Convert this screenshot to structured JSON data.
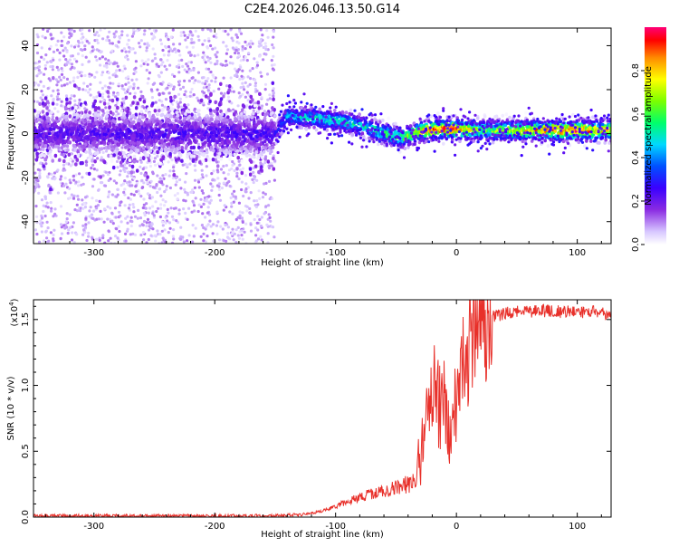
{
  "figure": {
    "title": "C2E4.2026.046.13.50.G14"
  },
  "chart_data": [
    {
      "type": "heatmap",
      "title": "C2E4.2026.046.13.50.G14",
      "xlabel": "Height of straight line (km)",
      "ylabel": "Frequency (Hz)",
      "xlim": [
        -350,
        128
      ],
      "ylim": [
        -50,
        48
      ],
      "xticks": [
        -300,
        -200,
        -100,
        0,
        100
      ],
      "yticks": [
        -40,
        -20,
        0,
        20,
        40
      ],
      "colorbar": {
        "label": "Normalized spectral amplitude",
        "range": [
          0,
          1
        ],
        "ticks": [
          0.0,
          0.2,
          0.4,
          0.6,
          0.8
        ]
      },
      "ridge": {
        "description_points_x": [
          -350,
          -150,
          -140,
          -120,
          -100,
          -80,
          -60,
          -45,
          -30,
          -15,
          0,
          20,
          60,
          100,
          128
        ],
        "frequency_hz": [
          0,
          0,
          8,
          7,
          6,
          4,
          0,
          -2,
          1,
          2,
          2,
          1.5,
          1.5,
          1.5,
          1.5
        ],
        "amplitude": [
          0.22,
          0.25,
          0.45,
          0.5,
          0.5,
          0.5,
          0.55,
          0.6,
          0.75,
          0.9,
          0.9,
          0.6,
          0.8,
          0.9,
          0.75
        ]
      }
    },
    {
      "type": "line",
      "xlabel": "Height of straight line (km)",
      "ylabel": "SNR (10 * v/v)",
      "yscale_label": "(x10",
      "yscale_exponent": "4",
      "xlim": [
        -350,
        128
      ],
      "ylim": [
        0,
        1.65
      ],
      "xticks": [
        -300,
        -200,
        -100,
        0,
        100
      ],
      "yticks": [
        "0.0",
        "0.5",
        "1.0",
        "1.5"
      ],
      "series": [
        {
          "name": "SNR",
          "color": "#e8302a",
          "x": [
            -350,
            -300,
            -250,
            -200,
            -150,
            -125,
            -110,
            -100,
            -90,
            -80,
            -70,
            -60,
            -50,
            -40,
            -35,
            -30,
            -25,
            -20,
            -15,
            -10,
            -5,
            0,
            5,
            10,
            15,
            20,
            25,
            30,
            40,
            50,
            60,
            70,
            80,
            90,
            100,
            110,
            120,
            128
          ],
          "y": [
            0.01,
            0.01,
            0.01,
            0.01,
            0.01,
            0.02,
            0.05,
            0.08,
            0.12,
            0.15,
            0.18,
            0.2,
            0.22,
            0.25,
            0.28,
            0.5,
            0.9,
            0.95,
            0.85,
            0.8,
            0.7,
            0.75,
            1.1,
            1.3,
            1.4,
            1.42,
            1.48,
            1.52,
            1.55,
            1.56,
            1.56,
            1.57,
            1.56,
            1.56,
            1.55,
            1.56,
            1.55,
            1.54
          ]
        }
      ]
    }
  ]
}
